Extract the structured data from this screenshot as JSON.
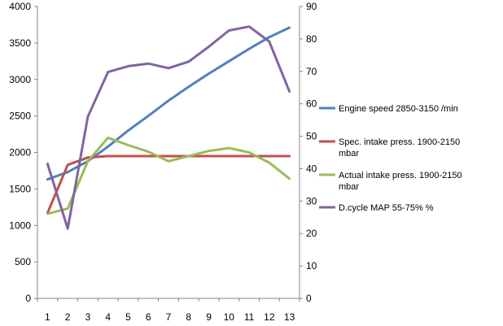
{
  "chart_data": {
    "type": "line",
    "x": [
      1,
      2,
      3,
      4,
      5,
      6,
      7,
      8,
      9,
      10,
      11,
      12,
      13
    ],
    "y_left": {
      "min": 0,
      "max": 4000,
      "ticks": [
        0,
        500,
        1000,
        1500,
        2000,
        2500,
        3000,
        3500,
        4000
      ]
    },
    "y_right": {
      "min": 0,
      "max": 90,
      "ticks": [
        0,
        10,
        20,
        30,
        40,
        50,
        60,
        70,
        80,
        90
      ]
    },
    "grid": false,
    "legend_position": "right",
    "series": [
      {
        "name": "Engine speed 2850-3150  /min",
        "axis": "left",
        "color": "#4f81bd",
        "values": [
          1630,
          1730,
          1880,
          2080,
          2300,
          2500,
          2710,
          2900,
          3080,
          3250,
          3420,
          3580,
          3710
        ]
      },
      {
        "name": "Spec. intake press. 1900-2150 mbar",
        "name_lines": [
          "Spec. intake press. 1900-2150",
          "mbar"
        ],
        "axis": "left",
        "color": "#c0504d",
        "values": [
          1170,
          1830,
          1930,
          1950,
          1950,
          1950,
          1950,
          1950,
          1950,
          1950,
          1950,
          1950,
          1950
        ]
      },
      {
        "name": "Actual intake press. 1900-2150 mbar",
        "name_lines": [
          "Actual intake press. 1900-2150",
          "mbar"
        ],
        "axis": "left",
        "color": "#9bbb59",
        "values": [
          1160,
          1230,
          1880,
          2200,
          2100,
          2010,
          1880,
          1950,
          2020,
          2060,
          2000,
          1860,
          1640
        ]
      },
      {
        "name": "D.cycle MAP 55-75% %",
        "axis": "right",
        "color": "#8064a2",
        "values": [
          41.5,
          21.5,
          56,
          69.8,
          71.6,
          72.4,
          71,
          73,
          77.6,
          82.6,
          83.8,
          79.2,
          63.8
        ]
      }
    ]
  }
}
